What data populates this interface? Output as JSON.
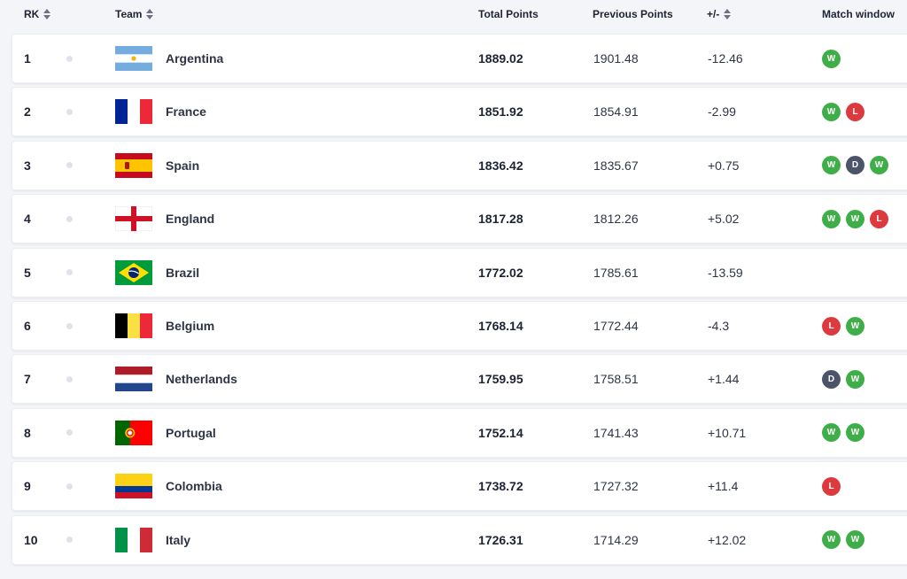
{
  "header": {
    "rank": "RK",
    "team": "Team",
    "total": "Total Points",
    "previous": "Previous Points",
    "diff": "+/-",
    "match_window": "Match window"
  },
  "colors": {
    "win": "#3fae49",
    "loss": "#dc3a3f",
    "draw": "#4c546a"
  },
  "rows": [
    {
      "rank": "1",
      "team": "Argentina",
      "flag": "argentina-flag",
      "total": "1889.02",
      "previous": "1901.48",
      "diff": "-12.46",
      "results": [
        "W"
      ]
    },
    {
      "rank": "2",
      "team": "France",
      "flag": "france-flag",
      "total": "1851.92",
      "previous": "1854.91",
      "diff": "-2.99",
      "results": [
        "W",
        "L"
      ]
    },
    {
      "rank": "3",
      "team": "Spain",
      "flag": "spain-flag",
      "total": "1836.42",
      "previous": "1835.67",
      "diff": "+0.75",
      "results": [
        "W",
        "D",
        "W"
      ]
    },
    {
      "rank": "4",
      "team": "England",
      "flag": "england-flag",
      "total": "1817.28",
      "previous": "1812.26",
      "diff": "+5.02",
      "results": [
        "W",
        "W",
        "L"
      ]
    },
    {
      "rank": "5",
      "team": "Brazil",
      "flag": "brazil-flag",
      "total": "1772.02",
      "previous": "1785.61",
      "diff": "-13.59",
      "results": []
    },
    {
      "rank": "6",
      "team": "Belgium",
      "flag": "belgium-flag",
      "total": "1768.14",
      "previous": "1772.44",
      "diff": "-4.3",
      "results": [
        "L",
        "W"
      ]
    },
    {
      "rank": "7",
      "team": "Netherlands",
      "flag": "netherlands-flag",
      "total": "1759.95",
      "previous": "1758.51",
      "diff": "+1.44",
      "results": [
        "D",
        "W"
      ]
    },
    {
      "rank": "8",
      "team": "Portugal",
      "flag": "portugal-flag",
      "total": "1752.14",
      "previous": "1741.43",
      "diff": "+10.71",
      "results": [
        "W",
        "W"
      ]
    },
    {
      "rank": "9",
      "team": "Colombia",
      "flag": "colombia-flag",
      "total": "1738.72",
      "previous": "1727.32",
      "diff": "+11.4",
      "results": [
        "L"
      ]
    },
    {
      "rank": "10",
      "team": "Italy",
      "flag": "italy-flag",
      "total": "1726.31",
      "previous": "1714.29",
      "diff": "+12.02",
      "results": [
        "W",
        "W"
      ]
    }
  ]
}
